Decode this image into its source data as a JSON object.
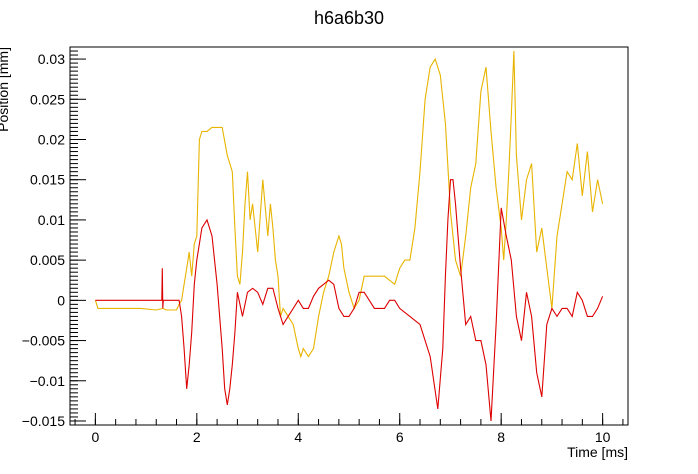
{
  "chart_data": {
    "type": "line",
    "title": "h6a6b30",
    "xlabel": "Time [ms]",
    "ylabel": "Position [mm]",
    "xlim": [
      -0.5,
      10.5
    ],
    "ylim": [
      -0.0155,
      0.0315
    ],
    "x_ticks": [
      0,
      2,
      4,
      6,
      8,
      10
    ],
    "x_tick_labels": [
      "0",
      "2",
      "4",
      "6",
      "8",
      "10"
    ],
    "y_ticks": [
      -0.015,
      -0.01,
      -0.005,
      0,
      0.005,
      0.01,
      0.015,
      0.02,
      0.025,
      0.03
    ],
    "y_tick_labels": [
      "−0.015",
      "−0.01",
      "−0.005",
      "0",
      "0.005",
      "0.01",
      "0.015",
      "0.02",
      "0.025",
      "0.03"
    ],
    "grid": false,
    "legend": "none",
    "series": [
      {
        "color": "#e8b400",
        "x": [
          0,
          0.05,
          0.3,
          0.6,
          0.9,
          1.2,
          1.33,
          1.4,
          1.6,
          1.65,
          1.7,
          1.75,
          1.8,
          1.85,
          1.9,
          1.95,
          2.0,
          2.05,
          2.1,
          2.15,
          2.2,
          2.3,
          2.5,
          2.6,
          2.65,
          2.7,
          2.75,
          2.8,
          2.85,
          2.9,
          2.95,
          3.0,
          3.05,
          3.1,
          3.2,
          3.3,
          3.4,
          3.45,
          3.5,
          3.55,
          3.6,
          3.65,
          3.7,
          3.8,
          3.9,
          4.0,
          4.05,
          4.1,
          4.2,
          4.3,
          4.4,
          4.5,
          4.6,
          4.7,
          4.8,
          4.85,
          4.9,
          5.0,
          5.1,
          5.2,
          5.3,
          5.5,
          5.7,
          5.9,
          6.0,
          6.1,
          6.2,
          6.3,
          6.4,
          6.5,
          6.6,
          6.7,
          6.8,
          6.9,
          7.0,
          7.1,
          7.2,
          7.3,
          7.4,
          7.5,
          7.6,
          7.7,
          7.8,
          7.9,
          8.0,
          8.05,
          8.1,
          8.15,
          8.2,
          8.25,
          8.3,
          8.4,
          8.5,
          8.6,
          8.7,
          8.8,
          8.9,
          9.0,
          9.1,
          9.2,
          9.3,
          9.4,
          9.5,
          9.6,
          9.7,
          9.8,
          9.9,
          10.0
        ],
        "y": [
          0,
          -0.001,
          -0.001,
          -0.001,
          -0.001,
          -0.0012,
          -0.001,
          -0.0012,
          -0.0012,
          -0.0005,
          0.0,
          0.002,
          0.004,
          0.006,
          0.003,
          0.007,
          0.008,
          0.02,
          0.021,
          0.021,
          0.021,
          0.0215,
          0.0215,
          0.018,
          0.017,
          0.016,
          0.009,
          0.003,
          0.002,
          0.006,
          0.012,
          0.016,
          0.01,
          0.012,
          0.006,
          0.015,
          0.008,
          0.012,
          0.009,
          0.005,
          0.003,
          -0.002,
          -0.001,
          -0.002,
          -0.003,
          -0.006,
          -0.007,
          -0.006,
          -0.007,
          -0.006,
          -0.002,
          0.001,
          0.003,
          0.006,
          0.008,
          0.007,
          0.004,
          0.001,
          -0.001,
          0.0,
          0.003,
          0.003,
          0.003,
          0.002,
          0.004,
          0.005,
          0.005,
          0.009,
          0.016,
          0.025,
          0.029,
          0.03,
          0.028,
          0.022,
          0.011,
          0.005,
          0.003,
          0.008,
          0.014,
          0.017,
          0.026,
          0.029,
          0.021,
          0.014,
          0.009,
          0.005,
          0.01,
          0.016,
          0.023,
          0.031,
          0.018,
          0.01,
          0.015,
          0.017,
          0.006,
          0.009,
          0.004,
          -0.001,
          0.008,
          0.012,
          0.016,
          0.015,
          0.0195,
          0.013,
          0.0185,
          0.011,
          0.015,
          0.012
        ]
      },
      {
        "color": "#dd0000",
        "x": [
          0,
          0.3,
          0.6,
          0.9,
          1.2,
          1.31,
          1.32,
          1.33,
          1.34,
          1.5,
          1.65,
          1.7,
          1.75,
          1.8,
          1.85,
          1.9,
          1.95,
          2.0,
          2.1,
          2.2,
          2.3,
          2.4,
          2.5,
          2.55,
          2.6,
          2.65,
          2.7,
          2.75,
          2.8,
          2.9,
          3.0,
          3.1,
          3.2,
          3.3,
          3.4,
          3.5,
          3.6,
          3.7,
          3.8,
          3.9,
          4.0,
          4.1,
          4.2,
          4.3,
          4.4,
          4.5,
          4.6,
          4.7,
          4.8,
          4.9,
          5.0,
          5.1,
          5.2,
          5.3,
          5.4,
          5.5,
          5.6,
          5.7,
          5.8,
          5.9,
          6.0,
          6.2,
          6.4,
          6.6,
          6.75,
          6.85,
          6.9,
          6.95,
          7.0,
          7.05,
          7.1,
          7.2,
          7.3,
          7.4,
          7.5,
          7.6,
          7.7,
          7.8,
          7.9,
          8.0,
          8.1,
          8.2,
          8.3,
          8.4,
          8.5,
          8.6,
          8.7,
          8.8,
          8.9,
          9.0,
          9.1,
          9.2,
          9.3,
          9.4,
          9.5,
          9.6,
          9.7,
          9.8,
          9.9,
          10.0
        ],
        "y": [
          0,
          0,
          0,
          0,
          0,
          0,
          0.004,
          -0.001,
          0,
          0,
          0,
          -0.002,
          -0.006,
          -0.011,
          -0.008,
          -0.004,
          0.002,
          0.005,
          0.009,
          0.01,
          0.008,
          0.002,
          -0.006,
          -0.011,
          -0.013,
          -0.011,
          -0.008,
          -0.004,
          0.001,
          -0.002,
          0.001,
          0.0015,
          0.001,
          -0.0005,
          0.0015,
          0.0015,
          -0.001,
          -0.003,
          -0.002,
          -0.001,
          0.0,
          -0.001,
          -0.001,
          0.0005,
          0.0015,
          0.002,
          0.0025,
          0.002,
          -0.001,
          -0.002,
          -0.002,
          -0.001,
          0.001,
          0.001,
          0.0,
          -0.001,
          -0.001,
          -0.001,
          0.0,
          0.0,
          -0.001,
          -0.002,
          -0.003,
          -0.007,
          -0.0135,
          -0.006,
          0.003,
          0.01,
          0.015,
          0.015,
          0.012,
          0.004,
          -0.003,
          -0.002,
          -0.005,
          -0.005,
          -0.008,
          -0.015,
          -0.003,
          0.0115,
          0.008,
          0.005,
          -0.002,
          -0.005,
          0.001,
          -0.002,
          -0.009,
          -0.012,
          -0.003,
          -0.001,
          -0.002,
          -0.001,
          -0.001,
          -0.002,
          0.001,
          0.0,
          -0.002,
          -0.002,
          -0.001,
          0.0005
        ]
      }
    ]
  }
}
